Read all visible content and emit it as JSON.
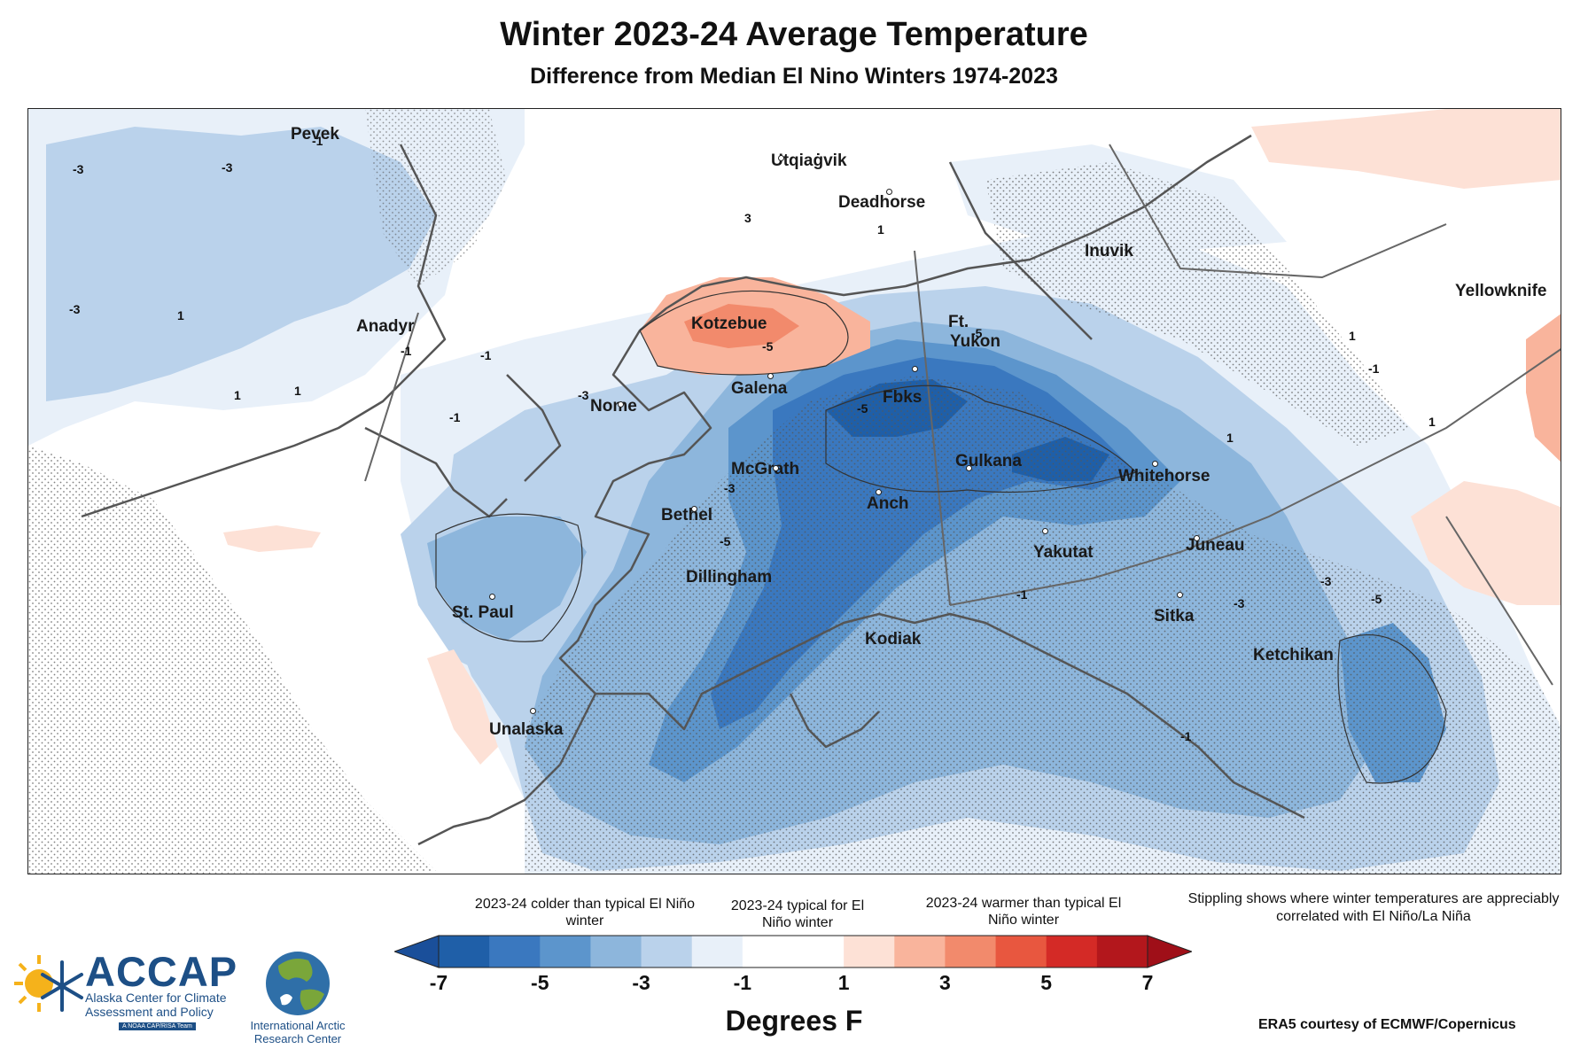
{
  "title": "Winter 2023-24 Average Temperature",
  "subtitle": "Difference from Median El Nino Winters 1974-2023",
  "map": {
    "cities": [
      {
        "name": "Pevek"
      },
      {
        "name": "Utqiaġvik"
      },
      {
        "name": "Deadhorse"
      },
      {
        "name": "Inuvik"
      },
      {
        "name": "Yellowknife"
      },
      {
        "name": "Anadyr"
      },
      {
        "name": "Kotzebue"
      },
      {
        "name": "Ft."
      },
      {
        "name": "Yukon"
      },
      {
        "name": "Galena"
      },
      {
        "name": "Nome"
      },
      {
        "name": "Fbks"
      },
      {
        "name": "Gulkana"
      },
      {
        "name": "McGrath"
      },
      {
        "name": "Whitehorse"
      },
      {
        "name": "Bethel"
      },
      {
        "name": "Anch"
      },
      {
        "name": "Yakutat"
      },
      {
        "name": "Juneau"
      },
      {
        "name": "Dillingham"
      },
      {
        "name": "St. Paul"
      },
      {
        "name": "Sitka"
      },
      {
        "name": "Kodiak"
      },
      {
        "name": "Ketchikan"
      },
      {
        "name": "Unalaska"
      }
    ],
    "contour_labels": [
      "-1",
      "-3",
      "-3",
      "-3",
      "-1",
      "1",
      "3",
      "1",
      "1",
      "-1",
      "-5",
      "-5",
      "-5",
      "-5",
      "-3",
      "-3",
      "-1",
      "1",
      "1",
      "-1",
      "-3",
      "-5",
      "-3",
      "-1",
      "-1",
      "1",
      "1"
    ]
  },
  "legend": {
    "colder_label": "2023-24 colder than typical El Niño winter",
    "typical_label": "2023-24 typical for El Niño winter",
    "warmer_label": "2023-24 warmer than typical El Niño winter",
    "ticks": [
      "-7",
      "-5",
      "-3",
      "-1",
      "1",
      "3",
      "5",
      "7"
    ],
    "units": "Degrees F",
    "colors": [
      "#1f5fa8",
      "#3a78bf",
      "#5c95cc",
      "#8db6dc",
      "#bad2eb",
      "#e8f0f9",
      "#ffffff",
      "#ffffff",
      "#fde1d6",
      "#f9b49c",
      "#f28a6c",
      "#e8573f",
      "#d42a26",
      "#b3171c"
    ],
    "under_color": "#1a4f9a",
    "over_color": "#9f0f18"
  },
  "stippling_note": "Stippling shows where winter temperatures are appreciably correlated with El Niño/La Niña",
  "credit": "ERA5 courtesy of ECMWF/Copernicus",
  "logos": {
    "accap_name": "ACCAP",
    "accap_sub_1": "Alaska Center for Climate",
    "accap_sub_2": "Assessment and Policy",
    "accap_tag": "A NOAA CAP/RISA Team",
    "iarc_name_1": "International Arctic",
    "iarc_name_2": "Research Center"
  }
}
